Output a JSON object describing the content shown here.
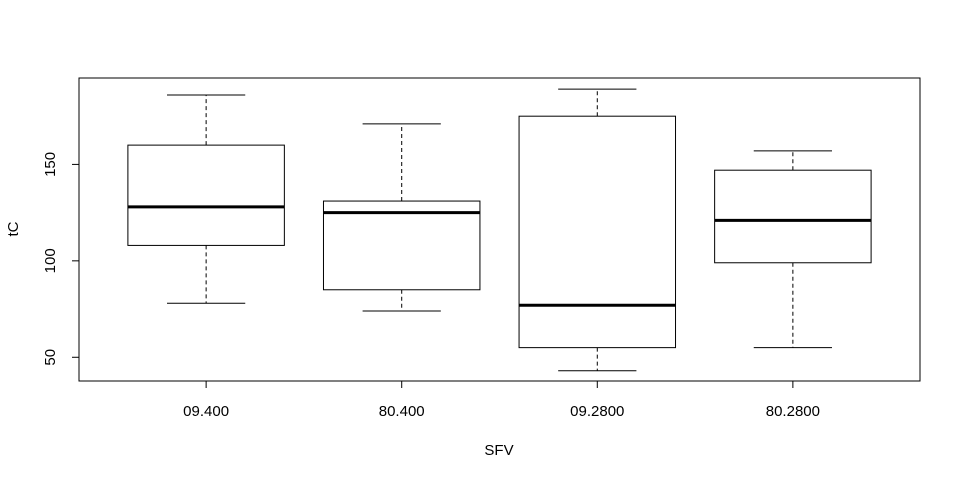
{
  "chart_data": {
    "type": "boxplot",
    "title": "",
    "xlabel": "SFV",
    "ylabel": "tC",
    "categories": [
      "09.400",
      "80.400",
      "09.2800",
      "80.2800"
    ],
    "boxes": [
      {
        "whisker_low": 78,
        "q1": 108,
        "median": 128,
        "q3": 160,
        "whisker_high": 186
      },
      {
        "whisker_low": 74,
        "q1": 85,
        "median": 125,
        "q3": 131,
        "whisker_high": 171
      },
      {
        "whisker_low": 43,
        "q1": 55,
        "median": 77,
        "q3": 175,
        "whisker_high": 189
      },
      {
        "whisker_low": 55,
        "q1": 99,
        "median": 121,
        "q3": 147,
        "whisker_high": 157
      }
    ],
    "ylim": [
      37.7,
      194.8
    ],
    "yticks": [
      50,
      100,
      150
    ],
    "grid": false,
    "legend": "none"
  }
}
